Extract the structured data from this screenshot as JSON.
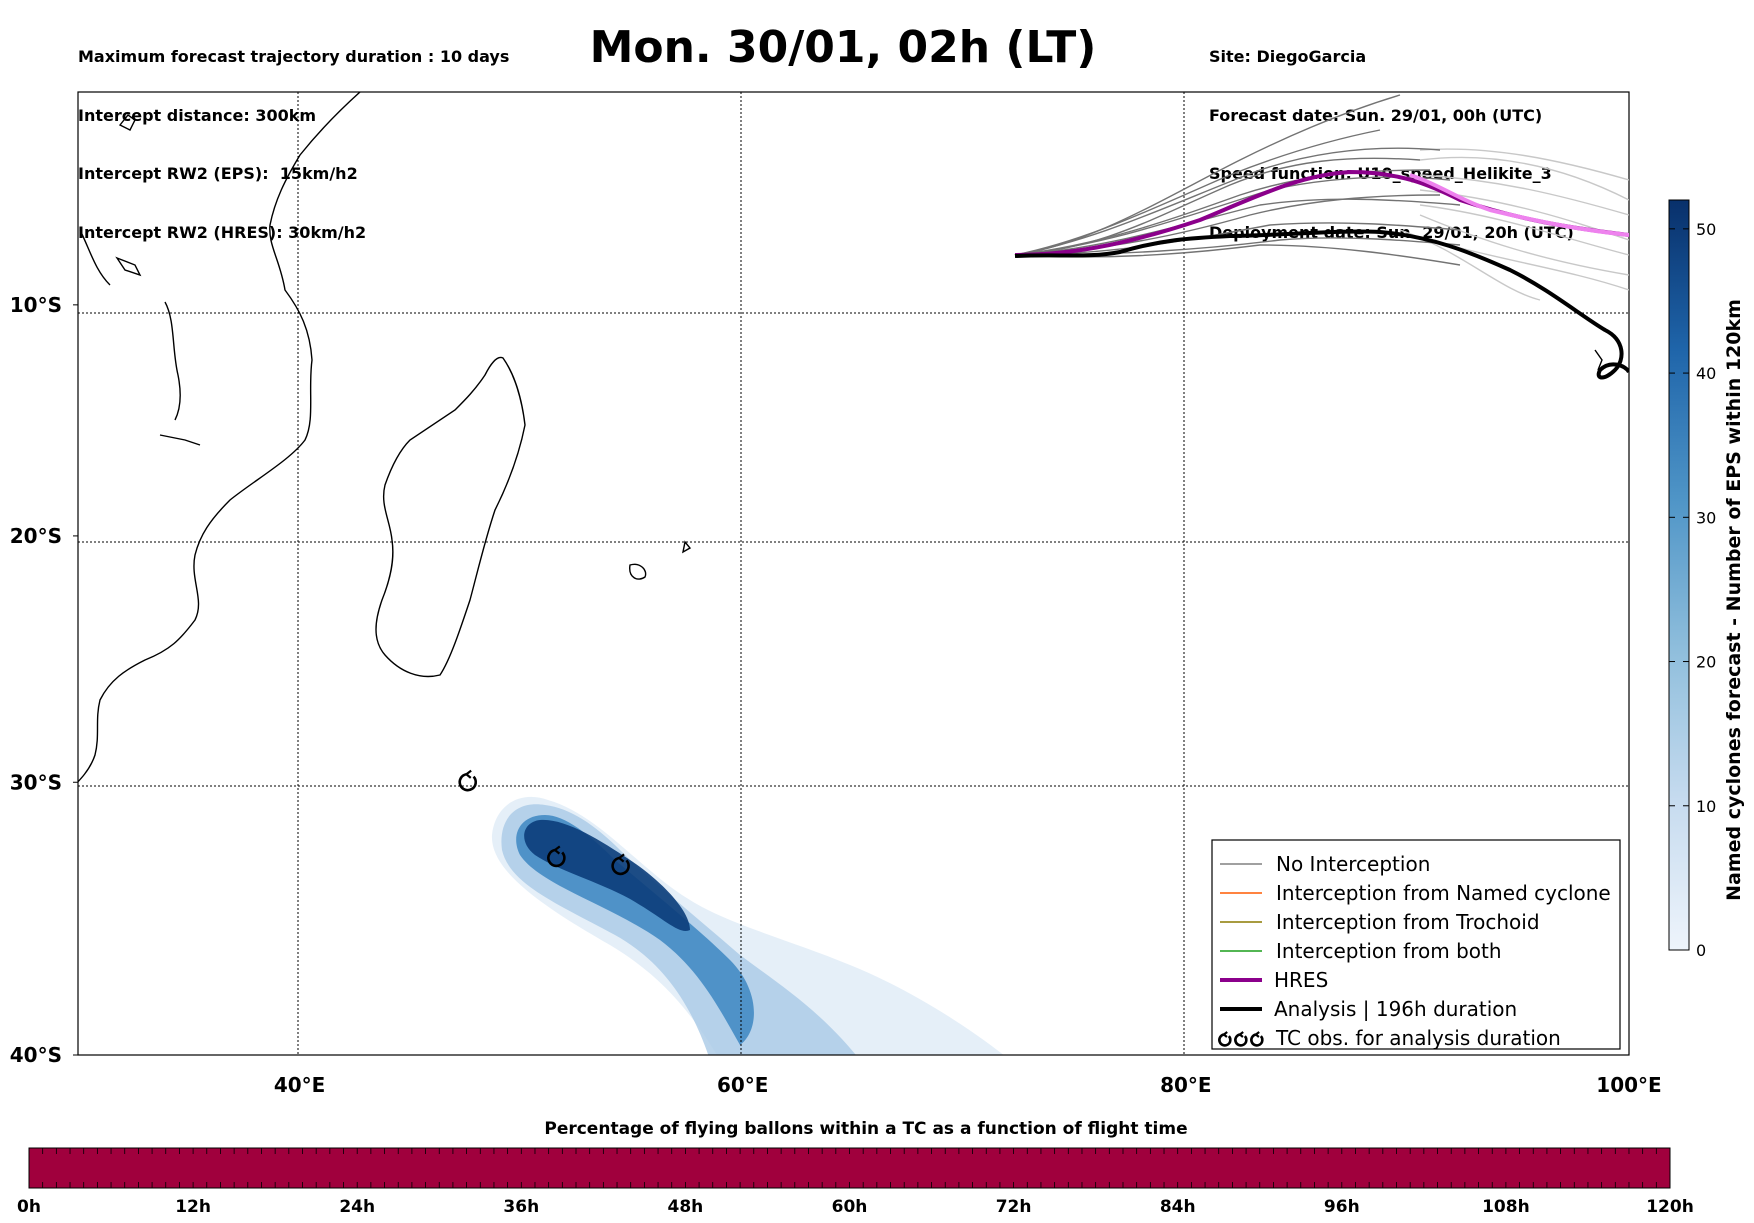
{
  "header": {
    "left": [
      "Maximum forecast trajectory duration : 10 days",
      "Intercept distance: 300km",
      "Intercept RW2 (EPS):  15km/h2",
      "Intercept RW2 (HRES): 30km/h2"
    ],
    "title": "Mon. 30/01, 02h (LT)",
    "right": [
      "Site: DiegoGarcia",
      "Forecast date: Sun. 29/01, 00h (UTC)",
      "Speed function: U10_speed_Helikite_3",
      "Deployment date: Sun. 29/01, 20h (UTC)"
    ]
  },
  "map": {
    "lat_ticks": [
      "10°S",
      "20°S",
      "30°S",
      "40°S"
    ],
    "lon_ticks": [
      "40°E",
      "60°E",
      "80°E",
      "100°E"
    ],
    "lon_range": [
      30,
      100
    ],
    "lat_range": [
      -40,
      -0.5
    ]
  },
  "legend": [
    {
      "label": "No Interception",
      "color": "#808080",
      "kind": "thin"
    },
    {
      "label": "Interception from Named cyclone",
      "color": "#ff5a00",
      "kind": "thin"
    },
    {
      "label": "Interception from Trochoid",
      "color": "#8b7a00",
      "kind": "thin"
    },
    {
      "label": "Interception from both",
      "color": "#1a9e1a",
      "kind": "thin"
    },
    {
      "label": "HRES",
      "color": "#8b008b",
      "kind": "thick"
    },
    {
      "label": "Analysis | 196h duration",
      "color": "#000000",
      "kind": "thick"
    },
    {
      "label": "TC obs. for analysis duration",
      "color": "#000000",
      "kind": "symbol"
    }
  ],
  "right_colorbar": {
    "label": "Named cyclones forecast - Number of EPS within 120km",
    "ticks": [
      "0",
      "10",
      "20",
      "30",
      "40",
      "50"
    ],
    "range": [
      0,
      52
    ],
    "colors": [
      "#e8f0fa",
      "#bcd6ec",
      "#7fb2d9",
      "#4a8fc4",
      "#1d64a8",
      "#08306b"
    ]
  },
  "bottom_colorbar": {
    "title": "Percentage of flying ballons within a TC as a function of flight time",
    "ticks": [
      "0h",
      "12h",
      "24h",
      "36h",
      "48h",
      "60h",
      "72h",
      "84h",
      "96h",
      "108h",
      "120h"
    ],
    "color": "#a0003d"
  },
  "tc_symbols": [
    {
      "lon": 47.6,
      "lat": -30.0
    },
    {
      "lon": 51.6,
      "lat": -32.9
    },
    {
      "lon": 54.5,
      "lat": -33.2
    }
  ]
}
